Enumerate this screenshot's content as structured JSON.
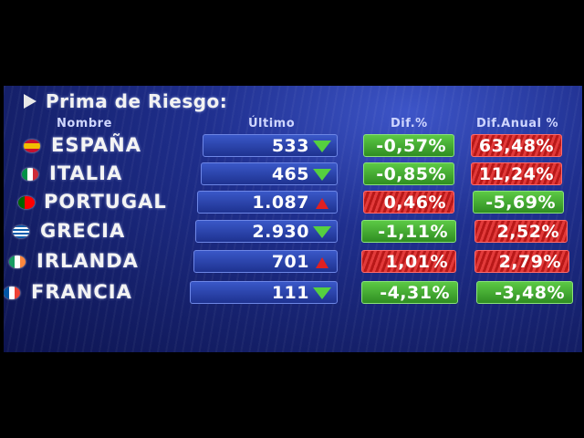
{
  "board": {
    "title": "Prima de Riesgo:",
    "headers": {
      "name": "Nombre",
      "last": "Último",
      "dif": "Dif.%",
      "dif_annual": "Dif.Anual %"
    },
    "rows": [
      {
        "country": "ESPAÑA",
        "flag": "spain-flag-icon",
        "last": "533",
        "trend": "down",
        "dif": "-0,57%",
        "dif_color": "green",
        "dif_annual": "63,48%",
        "dif_annual_color": "red"
      },
      {
        "country": "ITALIA",
        "flag": "italy-flag-icon",
        "last": "465",
        "trend": "down",
        "dif": "-0,85%",
        "dif_color": "green",
        "dif_annual": "11,24%",
        "dif_annual_color": "red"
      },
      {
        "country": "PORTUGAL",
        "flag": "portugal-flag-icon",
        "last": "1.087",
        "trend": "up",
        "dif": "0,46%",
        "dif_color": "red",
        "dif_annual": "-5,69%",
        "dif_annual_color": "green"
      },
      {
        "country": "GRECIA",
        "flag": "greece-flag-icon",
        "last": "2.930",
        "trend": "down",
        "dif": "-1,11%",
        "dif_color": "green",
        "dif_annual": "2,52%",
        "dif_annual_color": "red"
      },
      {
        "country": "IRLANDA",
        "flag": "ireland-flag-icon",
        "last": "701",
        "trend": "up",
        "dif": "1,01%",
        "dif_color": "red",
        "dif_annual": "2,79%",
        "dif_annual_color": "red"
      },
      {
        "country": "FRANCIA",
        "flag": "france-flag-icon",
        "last": "111",
        "trend": "down",
        "dif": "-4,31%",
        "dif_color": "green",
        "dif_annual": "-3,48%",
        "dif_annual_color": "green"
      }
    ]
  },
  "colors": {
    "green": "#3fae2e",
    "red": "#d42424",
    "board_blue": "#1f2f8e"
  }
}
